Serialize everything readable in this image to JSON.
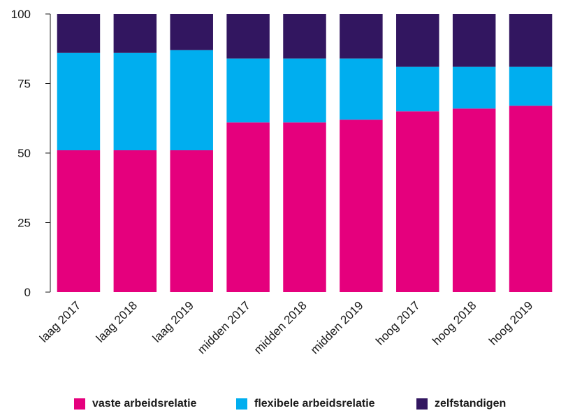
{
  "chart_data": {
    "type": "bar",
    "stacked": true,
    "title": "",
    "xlabel": "",
    "ylabel": "",
    "ylim": [
      0,
      100
    ],
    "yticks": [
      0,
      25,
      50,
      75,
      100
    ],
    "categories": [
      "laag 2017",
      "laag 2018",
      "laag 2019",
      "midden 2017",
      "midden 2018",
      "midden 2019",
      "hoog 2017",
      "hoog 2018",
      "hoog 2019"
    ],
    "series": [
      {
        "name": "vaste arbeidsrelatie",
        "color": "#e5007d",
        "values": [
          51,
          51,
          51,
          61,
          61,
          62,
          65,
          66,
          67
        ]
      },
      {
        "name": "flexibele arbeidsrelatie",
        "color": "#00aeef",
        "values": [
          35,
          35,
          36,
          23,
          23,
          22,
          16,
          15,
          14
        ]
      },
      {
        "name": "zelfstandigen",
        "color": "#321660",
        "values": [
          14,
          14,
          13,
          16,
          16,
          16,
          19,
          19,
          19
        ]
      }
    ],
    "grid": false,
    "legend_position": "bottom"
  }
}
